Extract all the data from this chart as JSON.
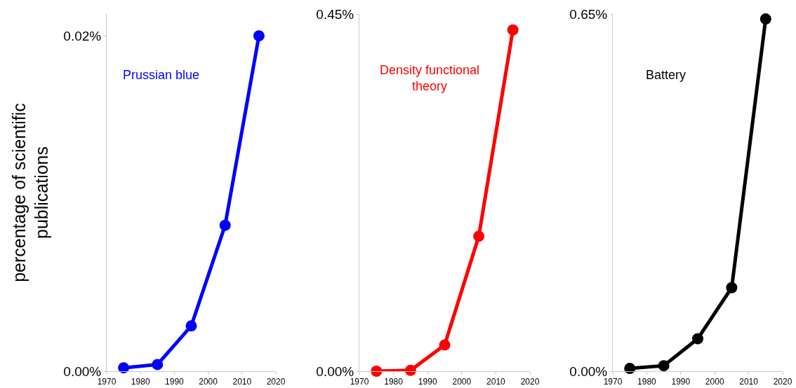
{
  "chart_data": [
    {
      "type": "line",
      "ylabel": "percentage of scientific publications",
      "x": [
        1975,
        1985,
        1995,
        2005,
        2015
      ],
      "series": [
        {
          "name": "Prussian blue",
          "color": "#0000ff",
          "values": [
            0.0002,
            0.0004,
            0.0027,
            0.0087,
            0.02
          ]
        }
      ],
      "xlim": [
        1970,
        2020
      ],
      "xticks": [
        1970,
        1980,
        1990,
        2000,
        2010,
        2020
      ],
      "ylim": [
        0,
        0.0213
      ],
      "yticks": [
        {
          "value": 0,
          "label": "0.00%"
        },
        {
          "value": 0.02,
          "label": "0.02%"
        }
      ],
      "grid": false,
      "legend": false,
      "marker": "circle",
      "line_style": "solid"
    },
    {
      "type": "line",
      "x": [
        1975,
        1985,
        1995,
        2005,
        2015
      ],
      "series": [
        {
          "name": "Density functional theory",
          "color": "#ff0000",
          "values": [
            0,
            0.001,
            0.033,
            0.17,
            0.43
          ]
        }
      ],
      "xlim": [
        1970,
        2020
      ],
      "xticks": [
        1970,
        1980,
        1990,
        2000,
        2010,
        2020
      ],
      "ylim": [
        0,
        0.45
      ],
      "yticks": [
        {
          "value": 0,
          "label": "0.00%"
        },
        {
          "value": 0.45,
          "label": "0.45%"
        }
      ],
      "grid": false,
      "legend": false,
      "marker": "circle",
      "line_style": "solid"
    },
    {
      "type": "line",
      "x": [
        1975,
        1985,
        1995,
        2005,
        2015
      ],
      "series": [
        {
          "name": "Battery",
          "color": "#000000",
          "values": [
            0.005,
            0.01,
            0.059,
            0.152,
            0.641
          ]
        }
      ],
      "xlim": [
        1970,
        2020
      ],
      "xticks": [
        1970,
        1980,
        1990,
        2000,
        2010,
        2020
      ],
      "ylim": [
        0,
        0.65
      ],
      "yticks": [
        {
          "value": 0,
          "label": "0.00%"
        },
        {
          "value": 0.65,
          "label": "0.65%"
        }
      ],
      "grid": false,
      "legend": false,
      "marker": "circle",
      "line_style": "solid"
    }
  ]
}
